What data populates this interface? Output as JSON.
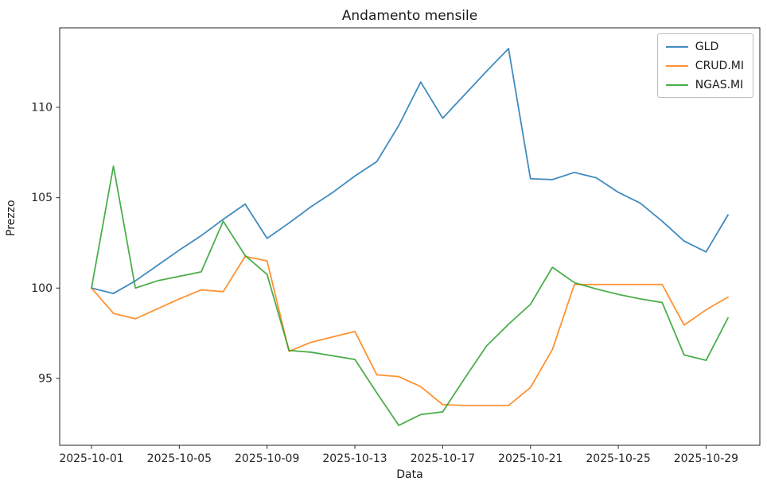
{
  "title": "Andamento mensile",
  "chart_data": {
    "type": "line",
    "title": "Andamento mensile",
    "xlabel": "Data",
    "ylabel": "Prezzo",
    "x": [
      "2025-10-01",
      "2025-10-02",
      "2025-10-03",
      "2025-10-04",
      "2025-10-05",
      "2025-10-06",
      "2025-10-07",
      "2025-10-08",
      "2025-10-09",
      "2025-10-10",
      "2025-10-11",
      "2025-10-12",
      "2025-10-13",
      "2025-10-14",
      "2025-10-15",
      "2025-10-16",
      "2025-10-17",
      "2025-10-18",
      "2025-10-19",
      "2025-10-20",
      "2025-10-21",
      "2025-10-22",
      "2025-10-23",
      "2025-10-24",
      "2025-10-25",
      "2025-10-26",
      "2025-10-27",
      "2025-10-28",
      "2025-10-29",
      "2025-10-30"
    ],
    "series": [
      {
        "name": "GLD",
        "color": "#1f77b4",
        "values": [
          100.0,
          99.7,
          100.4,
          101.25,
          102.1,
          102.9,
          103.8,
          104.65,
          102.75,
          103.6,
          104.5,
          105.3,
          106.2,
          107.0,
          109.0,
          111.4,
          109.4,
          110.7,
          112.0,
          113.25,
          106.05,
          106.0,
          106.4,
          106.1,
          105.3,
          104.7,
          103.7,
          102.6,
          102.0,
          104.05
        ]
      },
      {
        "name": "CRUD.MI",
        "color": "#ff7f0e",
        "values": [
          100.0,
          98.6,
          98.3,
          98.85,
          99.4,
          99.9,
          99.8,
          101.75,
          101.5,
          96.5,
          97.0,
          97.3,
          97.6,
          95.2,
          95.1,
          94.55,
          93.55,
          93.5,
          93.5,
          93.5,
          94.5,
          96.6,
          100.2,
          100.2,
          100.2,
          100.2,
          100.2,
          97.95,
          98.8,
          99.5
        ]
      },
      {
        "name": "NGAS.MI",
        "color": "#2ca02c",
        "values": [
          100.0,
          106.75,
          100.0,
          100.4,
          100.65,
          100.9,
          103.7,
          101.8,
          100.75,
          96.55,
          96.45,
          96.25,
          96.05,
          94.2,
          92.4,
          93.0,
          93.15,
          95.0,
          96.8,
          98.0,
          99.1,
          101.15,
          100.3,
          99.95,
          99.65,
          99.4,
          99.2,
          96.3,
          96.0,
          98.35
        ]
      }
    ],
    "xtick_indices": [
      0,
      4,
      8,
      12,
      16,
      20,
      24,
      28
    ],
    "xtick_labels": [
      "2025-10-01",
      "2025-10-05",
      "2025-10-09",
      "2025-10-13",
      "2025-10-17",
      "2025-10-21",
      "2025-10-25",
      "2025-10-29"
    ],
    "yticks": [
      95,
      100,
      105,
      110
    ],
    "xlim_index": [
      -1.45,
      30.45
    ],
    "ylim": [
      91.3,
      114.4
    ],
    "grid": false,
    "legend_position": "upper right",
    "axis_color": "#262626",
    "tick_label_color": "#262626"
  }
}
